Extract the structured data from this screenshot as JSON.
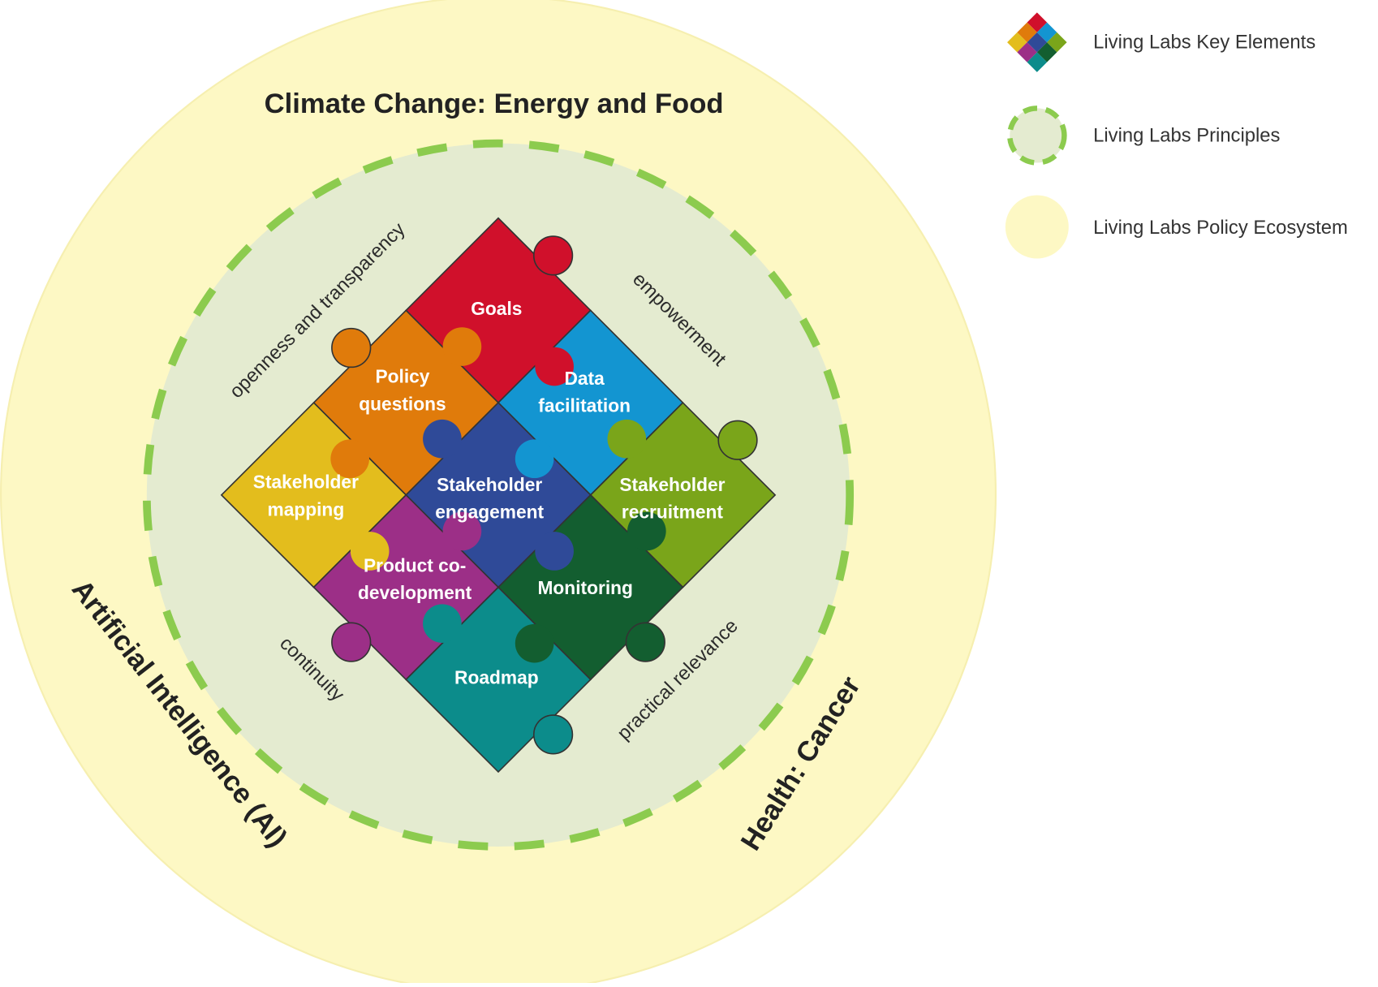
{
  "ecosystem_themes": [
    "Climate Change: Energy and Food",
    "Artificial Intelligence (AI)",
    "Health: Cancer"
  ],
  "principles": [
    "openness and transparency",
    "empowerment",
    "continuity",
    "practical relevance"
  ],
  "key_elements": [
    [
      "Goals"
    ],
    [
      "Data",
      "facilitation"
    ],
    [
      "Stakeholder",
      "recruitment"
    ],
    [
      "Policy",
      "questions"
    ],
    [
      "Stakeholder",
      "engagement"
    ],
    [
      "Monitoring"
    ],
    [
      "Stakeholder",
      "mapping"
    ],
    [
      "Product co-",
      "development"
    ],
    [
      "Roadmap"
    ]
  ],
  "legend": [
    "Living Labs Key Elements",
    "Living Labs Principles",
    "Living Labs Policy Ecosystem"
  ]
}
